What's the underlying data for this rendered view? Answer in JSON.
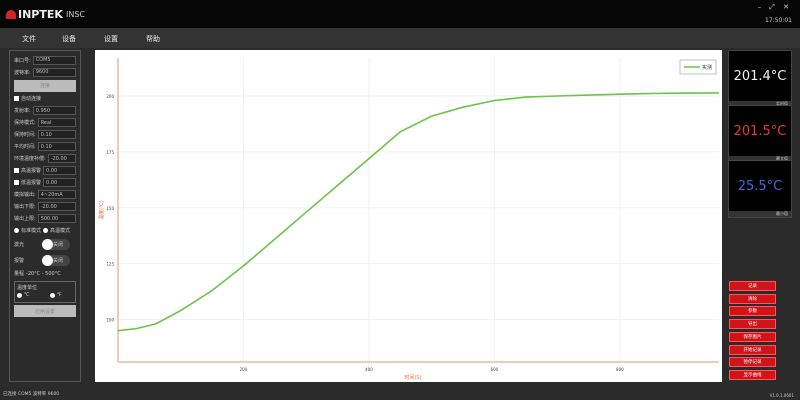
{
  "title": {
    "brand": "INPTEK",
    "app": "INSC",
    "controls": "– ⤢ ✕",
    "clock": "17:50:01"
  },
  "menu": [
    "文件",
    "设备",
    "设置",
    "帮助"
  ],
  "left": {
    "port_label": "串口号:",
    "port": "COM5",
    "baud_label": "波特率:",
    "baud": "9600",
    "connect": "连接",
    "auto_connect": "自动连接",
    "emis_label": "发射率:",
    "emis": "0.950",
    "hold_mode_label": "保持模式:",
    "hold_mode": "Real",
    "hold_time_label": "保持时间:",
    "hold_time": "0.10",
    "avg_label": "平均时间:",
    "avg": "0.10",
    "amb_label": "环境温度补偿:",
    "amb": "-20.00",
    "high_alarm": "高温报警",
    "high_val": "0.00",
    "low_alarm": "低温报警",
    "low_val": "0.00",
    "analog_label": "模拟输出:",
    "analog": "4~20mA",
    "out_low_label": "输出下限:",
    "out_low": "-20.00",
    "out_high_label": "输出上限:",
    "out_high": "500.00",
    "mode_std": "标准模式",
    "mode_high": "高温模式",
    "laser_label": "激光",
    "laser_state": "关闭",
    "alarm_label": "报警",
    "alarm_state": "关闭",
    "range_label": "量程",
    "range": "-20°C - 500°C",
    "unit_label": "温度单位",
    "unit_c": "℃",
    "unit_f": "℉",
    "apply": "应用设置"
  },
  "right": {
    "panels": [
      {
        "value": "201.4°C",
        "color": "#f2f2f2",
        "footer": "实时值"
      },
      {
        "value": "201.5°C",
        "color": "#e8392b",
        "footer": "最大值"
      },
      {
        "value": "25.5°C",
        "color": "#3b6fd4",
        "footer": "最小值"
      }
    ],
    "buttons": [
      "记录",
      "清除",
      "参数",
      "导出",
      "保存图片",
      "开始记录",
      "暂停记录",
      "显示曲线"
    ]
  },
  "status": "已连接 COM5 波特率 9600",
  "version": "V1.0.1.0601",
  "chart_data": {
    "type": "line",
    "xlabel": "时间(S)",
    "ylabel": "温度(℃)",
    "xlim": [
      0,
      958
    ],
    "ylim": [
      81,
      217
    ],
    "xticks": [
      200,
      400,
      600,
      800
    ],
    "yticks": [
      100,
      125,
      150,
      175,
      200
    ],
    "grid": true,
    "legend": "top-right",
    "series": [
      {
        "name": "实测",
        "color": "#6cc24a",
        "x": [
          0,
          30,
          60,
          100,
          150,
          200,
          250,
          300,
          350,
          400,
          450,
          500,
          550,
          600,
          650,
          700,
          750,
          800,
          850,
          900,
          958
        ],
        "y": [
          95,
          96,
          98,
          104,
          113,
          124,
          136,
          148,
          160,
          172,
          184,
          191,
          195,
          198,
          199.5,
          200,
          200.4,
          200.8,
          201.1,
          201.3,
          201.4
        ]
      }
    ]
  }
}
